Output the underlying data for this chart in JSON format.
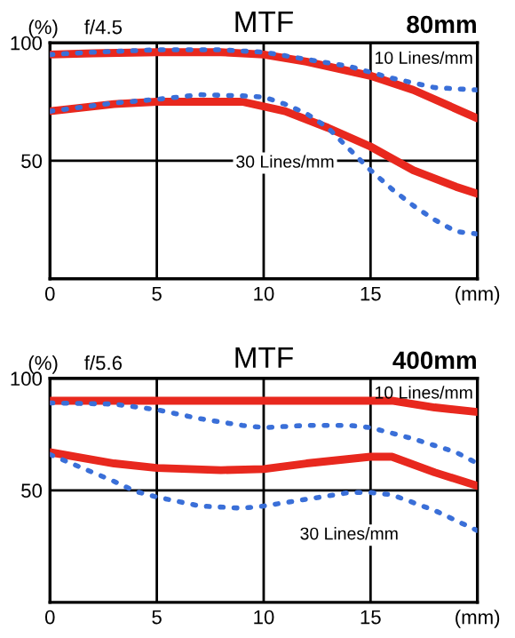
{
  "chart_data": [
    {
      "type": "line",
      "title": "MTF",
      "subtitle": "f/4.5",
      "ylabel": "(%)",
      "xlim": [
        0,
        20
      ],
      "ylim": [
        0,
        100
      ],
      "xticks": [
        0,
        5,
        10,
        15,
        {
          "value": 20,
          "label": "(mm)"
        }
      ],
      "yticks": [
        50,
        100
      ],
      "grid": true,
      "legend": false,
      "annotations": [
        "80mm",
        "10 Lines/mm",
        "30 Lines/mm"
      ],
      "series": [
        {
          "color": "#e8281e",
          "line_style": "solid",
          "x": [
            0,
            2,
            5,
            8,
            10,
            12,
            15,
            17,
            20
          ],
          "values": [
            95,
            95.5,
            96,
            96,
            95,
            92,
            86,
            80,
            68
          ]
        },
        {
          "color": "#3a6fd8",
          "line_style": "dotted",
          "x": [
            0,
            2,
            5,
            8,
            10,
            12,
            14,
            16,
            18,
            20
          ],
          "values": [
            95,
            96,
            97,
            97,
            96,
            93,
            90,
            85,
            81,
            80
          ]
        },
        {
          "color": "#e8281e",
          "line_style": "solid",
          "x": [
            0,
            3,
            5,
            9,
            11,
            13,
            15,
            17,
            19,
            20
          ],
          "values": [
            71,
            74,
            75,
            75,
            71,
            64,
            56,
            46,
            39,
            36
          ]
        },
        {
          "color": "#3a6fd8",
          "line_style": "dotted",
          "x": [
            0,
            3,
            5,
            7,
            9,
            10,
            11,
            12,
            13,
            14,
            15,
            16,
            17,
            18,
            19,
            20
          ],
          "values": [
            71,
            74.5,
            76,
            78,
            77.5,
            77,
            74,
            70,
            64,
            55,
            46,
            38,
            31,
            25,
            20,
            19
          ]
        }
      ]
    },
    {
      "type": "line",
      "title": "MTF",
      "subtitle": "f/5.6",
      "ylabel": "(%)",
      "xlim": [
        0,
        20
      ],
      "ylim": [
        0,
        100
      ],
      "xticks": [
        0,
        5,
        10,
        15,
        {
          "value": 20,
          "label": "(mm)"
        }
      ],
      "yticks": [
        50,
        100
      ],
      "grid": true,
      "legend": false,
      "annotations": [
        "400mm",
        "10 Lines/mm",
        "30 Lines/mm"
      ],
      "series": [
        {
          "color": "#e8281e",
          "line_style": "solid",
          "x": [
            0,
            5,
            10,
            16,
            18,
            20
          ],
          "values": [
            90,
            90,
            90,
            90,
            87,
            85
          ]
        },
        {
          "color": "#3a6fd8",
          "line_style": "dotted",
          "x": [
            0,
            3,
            5,
            7,
            9,
            10,
            12,
            14,
            15,
            17,
            19,
            20
          ],
          "values": [
            89,
            88.5,
            86,
            82,
            79,
            78,
            79,
            79,
            78,
            73,
            67,
            62
          ]
        },
        {
          "color": "#e8281e",
          "line_style": "solid",
          "x": [
            0,
            3,
            5,
            8,
            10,
            12,
            15,
            16,
            18,
            20
          ],
          "values": [
            67,
            62,
            60,
            59,
            59.5,
            62,
            65,
            65,
            58,
            52
          ]
        },
        {
          "color": "#3a6fd8",
          "line_style": "dotted",
          "x": [
            0,
            2,
            3,
            4,
            5,
            7,
            9,
            10,
            12,
            14,
            15,
            16,
            18,
            20
          ],
          "values": [
            66,
            58,
            54,
            49.5,
            47,
            43,
            42,
            43,
            46,
            49,
            49,
            48,
            41,
            32
          ]
        }
      ]
    }
  ]
}
